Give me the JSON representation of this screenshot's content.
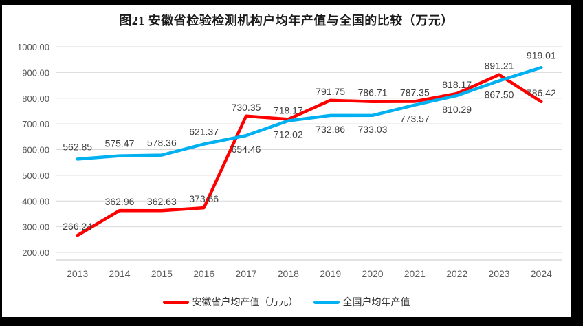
{
  "title": "图21 安徽省检验检测机构户均年产值与全国的比较（万元）",
  "style": {
    "anhui_red": "#FF0000",
    "national_blue": "#00B0F0",
    "gridline": "#D9D9D9",
    "axis_line": "#C6C6C6",
    "tick_text": "#595959",
    "label_text": "#3F3F3F",
    "frame": "#000000",
    "background": "#FFFFFF"
  },
  "chart_data": {
    "type": "line",
    "title": "图21 安徽省检验检测机构户均年产值与全国的比较（万元）",
    "categories": [
      "2013",
      "2014",
      "2015",
      "2016",
      "2017",
      "2018",
      "2019",
      "2020",
      "2021",
      "2022",
      "2023",
      "2024"
    ],
    "series": [
      {
        "name": "安徽省户均产值（万元）",
        "color": "#FF0000",
        "values": [
          266.24,
          362.96,
          362.63,
          373.66,
          730.35,
          718.17,
          791.75,
          786.71,
          787.35,
          818.17,
          891.21,
          786.42
        ],
        "label_positions": [
          "above",
          "above",
          "above",
          "above",
          "above",
          "above",
          "above",
          "above",
          "above",
          "above",
          "above",
          "above"
        ]
      },
      {
        "name": "全国户均年产值",
        "color": "#00B0F0",
        "values": [
          562.85,
          575.47,
          578.36,
          621.37,
          654.46,
          712.02,
          732.86,
          733.03,
          773.57,
          810.29,
          867.5,
          919.01
        ],
        "label_positions": [
          "above",
          "above",
          "above",
          "above",
          "below",
          "below",
          "below",
          "below",
          "below",
          "below",
          "below",
          "above"
        ]
      }
    ],
    "y_axis": {
      "min": 200,
      "max": 1000,
      "step": 100,
      "tick_labels": [
        "1000.00",
        "900.00",
        "800.00",
        "700.00",
        "600.00",
        "500.00",
        "400.00",
        "300.00",
        "200.00"
      ]
    },
    "ylim": [
      200,
      1000
    ],
    "grid": true,
    "data_labels": true,
    "legend_position": "bottom"
  }
}
